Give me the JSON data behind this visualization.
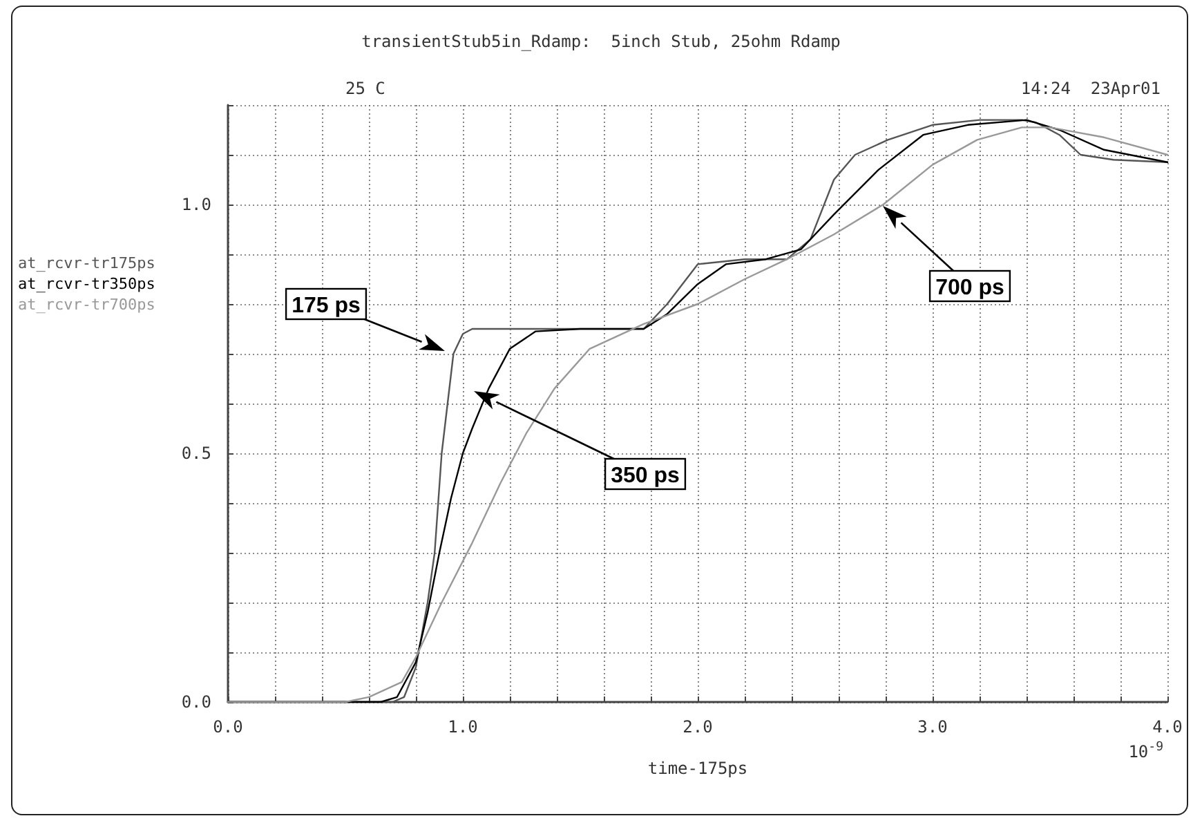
{
  "chart_data": {
    "type": "line",
    "title": "transientStub5in_Rdamp:  5inch Stub, 25ohm Rdamp",
    "xlabel": "time-175ps",
    "annotations": [
      "25 C",
      "14:24  23Apr01",
      "10$^{-9}$",
      "175 ps",
      "350 ps",
      "700 ps"
    ],
    "series": [
      {
        "name": "at_rcvr-tr175ps",
        "color": "#555555",
        "x": [
          0,
          0.6,
          0.7,
          0.75,
          0.8,
          0.85,
          0.88,
          0.91,
          0.96,
          1.0,
          1.04,
          1.1,
          1.77,
          1.87,
          2.0,
          2.2,
          2.38,
          2.48,
          2.58,
          2.67,
          2.81,
          3.0,
          3.2,
          3.38,
          3.44,
          3.54,
          3.63,
          3.77,
          4.0
        ],
        "values": [
          0,
          0,
          0,
          0.01,
          0.07,
          0.2,
          0.3,
          0.5,
          0.7,
          0.74,
          0.75,
          0.75,
          0.75,
          0.8,
          0.88,
          0.89,
          0.89,
          0.93,
          1.05,
          1.1,
          1.13,
          1.16,
          1.17,
          1.17,
          1.165,
          1.14,
          1.1,
          1.09,
          1.085
        ]
      },
      {
        "name": "at_rcvr-tr350ps",
        "color": "#000000",
        "x": [
          0,
          0.65,
          0.72,
          0.8,
          0.85,
          0.9,
          0.95,
          1.0,
          1.04,
          1.11,
          1.2,
          1.31,
          1.5,
          1.77,
          1.87,
          2.0,
          2.12,
          2.29,
          2.44,
          2.58,
          2.77,
          2.96,
          3.15,
          3.4,
          3.54,
          3.73,
          4.0
        ],
        "values": [
          0,
          0,
          0.01,
          0.08,
          0.18,
          0.3,
          0.41,
          0.5,
          0.55,
          0.63,
          0.71,
          0.745,
          0.75,
          0.75,
          0.78,
          0.84,
          0.88,
          0.89,
          0.91,
          0.98,
          1.07,
          1.14,
          1.16,
          1.17,
          1.15,
          1.11,
          1.085
        ]
      },
      {
        "name": "at_rcvr-tr700ps",
        "color": "#999999",
        "x": [
          0,
          0.5,
          0.6,
          0.74,
          0.8,
          0.91,
          1.04,
          1.16,
          1.27,
          1.39,
          1.54,
          1.77,
          2.0,
          2.2,
          2.38,
          2.58,
          2.79,
          3.0,
          3.19,
          3.38,
          3.5,
          3.73,
          4.0
        ],
        "values": [
          0,
          0,
          0.01,
          0.04,
          0.09,
          0.2,
          0.32,
          0.44,
          0.54,
          0.63,
          0.71,
          0.76,
          0.8,
          0.85,
          0.89,
          0.94,
          1.0,
          1.08,
          1.13,
          1.155,
          1.155,
          1.135,
          1.1
        ]
      }
    ],
    "xlim": [
      0,
      4
    ],
    "ylim": [
      0,
      1.2
    ],
    "xticks": [
      {
        "value": 0,
        "label": "0.0"
      },
      {
        "value": 0.2,
        "label": null
      },
      {
        "value": 0.4,
        "label": null
      },
      {
        "value": 0.6,
        "label": null
      },
      {
        "value": 0.8,
        "label": null
      },
      {
        "value": 1,
        "label": "1.0"
      },
      {
        "value": 1.2,
        "label": null
      },
      {
        "value": 1.4,
        "label": null
      },
      {
        "value": 1.6,
        "label": null
      },
      {
        "value": 1.8,
        "label": null
      },
      {
        "value": 2,
        "label": "2.0"
      },
      {
        "value": 2.2,
        "label": null
      },
      {
        "value": 2.4,
        "label": null
      },
      {
        "value": 2.6,
        "label": null
      },
      {
        "value": 2.8,
        "label": null
      },
      {
        "value": 3,
        "label": "3.0"
      },
      {
        "value": 3.2,
        "label": null
      },
      {
        "value": 3.4,
        "label": null
      },
      {
        "value": 3.6,
        "label": null
      },
      {
        "value": 3.8,
        "label": null
      },
      {
        "value": 4,
        "label": "4.0"
      }
    ],
    "yticks": [
      {
        "value": 0,
        "label": "0.0"
      },
      {
        "value": 0.1,
        "label": null
      },
      {
        "value": 0.2,
        "label": null
      },
      {
        "value": 0.3,
        "label": null
      },
      {
        "value": 0.4,
        "label": null
      },
      {
        "value": 0.5,
        "label": "0.5"
      },
      {
        "value": 0.6,
        "label": null
      },
      {
        "value": 0.7,
        "label": null
      },
      {
        "value": 0.8,
        "label": null
      },
      {
        "value": 0.9,
        "label": null
      },
      {
        "value": 1,
        "label": "1.0"
      },
      {
        "value": 1.1,
        "label": null
      },
      {
        "value": 1.2,
        "label": null
      }
    ],
    "grid": true,
    "legend": "left",
    "marker": "none",
    "line_style": "solid"
  }
}
